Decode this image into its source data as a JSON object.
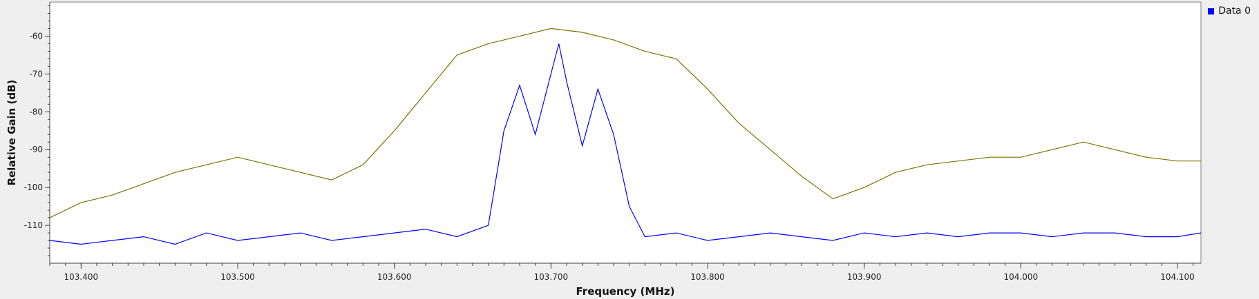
{
  "chart_data": {
    "type": "line",
    "title": "",
    "xlabel": "Frequency (MHz)",
    "ylabel": "Relative Gain (dB)",
    "xlim": [
      103.38,
      104.115
    ],
    "ylim": [
      -120,
      -51
    ],
    "x_ticks": [
      103.4,
      103.5,
      103.6,
      103.7,
      103.8,
      103.9,
      104.0,
      104.1
    ],
    "x_tick_labels": [
      "103.400",
      "103.500",
      "103.600",
      "103.700",
      "103.800",
      "103.900",
      "104.000",
      "104.100"
    ],
    "y_ticks": [
      -110,
      -100,
      -90,
      -80,
      -70,
      -60
    ],
    "y_tick_labels": [
      "-110",
      "-100",
      "-90",
      "-80",
      "-70",
      "-60"
    ],
    "legend": {
      "position": "top-right",
      "entries": [
        {
          "name": "Data 0",
          "color": "#0000ff"
        }
      ]
    },
    "series": [
      {
        "name": "",
        "color": "#7a7400",
        "x": [
          103.38,
          103.4,
          103.42,
          103.44,
          103.46,
          103.48,
          103.5,
          103.52,
          103.54,
          103.56,
          103.58,
          103.6,
          103.62,
          103.64,
          103.66,
          103.68,
          103.7,
          103.72,
          103.74,
          103.76,
          103.78,
          103.8,
          103.82,
          103.84,
          103.86,
          103.88,
          103.9,
          103.92,
          103.94,
          103.96,
          103.98,
          104.0,
          104.02,
          104.04,
          104.06,
          104.08,
          104.1,
          104.115
        ],
        "y": [
          -108,
          -104,
          -102,
          -99,
          -96,
          -94,
          -92,
          -94,
          -96,
          -98,
          -94,
          -85,
          -75,
          -65,
          -62,
          -60,
          -58,
          -59,
          -61,
          -64,
          -66,
          -74,
          -83,
          -90,
          -97,
          -103,
          -100,
          -96,
          -94,
          -93,
          -92,
          -92,
          -90,
          -88,
          -90,
          -92,
          -93,
          -93
        ]
      },
      {
        "name": "Data 0",
        "color": "#0000ff",
        "x": [
          103.38,
          103.4,
          103.42,
          103.44,
          103.46,
          103.48,
          103.5,
          103.52,
          103.54,
          103.56,
          103.58,
          103.6,
          103.62,
          103.64,
          103.66,
          103.67,
          103.68,
          103.69,
          103.7,
          103.705,
          103.71,
          103.72,
          103.73,
          103.74,
          103.75,
          103.76,
          103.78,
          103.8,
          103.82,
          103.84,
          103.86,
          103.88,
          103.9,
          103.92,
          103.94,
          103.96,
          103.98,
          104.0,
          104.02,
          104.04,
          104.06,
          104.08,
          104.1,
          104.115
        ],
        "y": [
          -114,
          -115,
          -114,
          -113,
          -115,
          -112,
          -114,
          -113,
          -112,
          -114,
          -113,
          -112,
          -111,
          -113,
          -110,
          -85,
          -73,
          -86,
          -70,
          -62,
          -72,
          -89,
          -74,
          -86,
          -105,
          -113,
          -112,
          -114,
          -113,
          -112,
          -113,
          -114,
          -112,
          -113,
          -112,
          -113,
          -112,
          -112,
          -113,
          -112,
          -112,
          -113,
          -113,
          -112
        ]
      }
    ]
  }
}
